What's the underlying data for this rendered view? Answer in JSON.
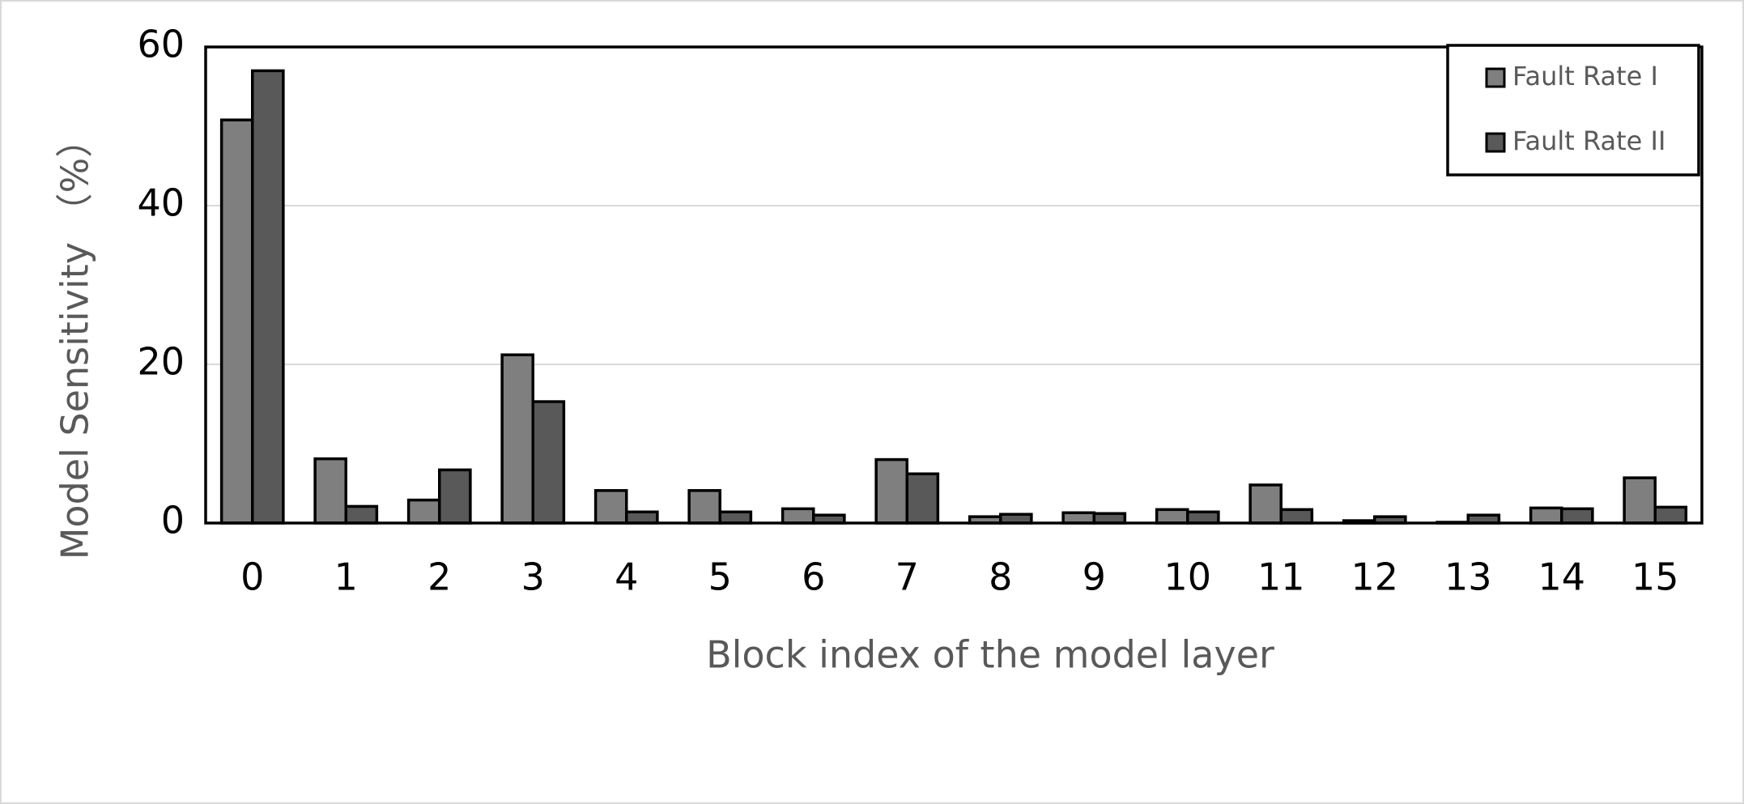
{
  "chart_data": {
    "type": "bar",
    "xlabel": "Block index of the model layer",
    "ylabel": "Model Sensitivity （%）",
    "categories": [
      "0",
      "1",
      "2",
      "3",
      "4",
      "5",
      "6",
      "7",
      "8",
      "9",
      "10",
      "11",
      "12",
      "13",
      "14",
      "15"
    ],
    "series": [
      {
        "name": "Fault Rate I",
        "color": "#7f7f7f",
        "values": [
          50.8,
          8.1,
          2.9,
          21.2,
          4.1,
          4.1,
          1.8,
          8.0,
          0.8,
          1.3,
          1.7,
          4.8,
          0.3,
          0.1,
          1.9,
          5.7
        ]
      },
      {
        "name": "Fault Rate II",
        "color": "#595959",
        "values": [
          57.0,
          2.1,
          6.7,
          15.3,
          1.4,
          1.4,
          1.0,
          6.2,
          1.1,
          1.2,
          1.4,
          1.7,
          0.8,
          1.0,
          1.8,
          2.0
        ]
      }
    ],
    "ylim": [
      0,
      60
    ],
    "yticks": [
      0,
      20,
      40,
      60
    ],
    "grid": true,
    "legend": "upper right"
  }
}
